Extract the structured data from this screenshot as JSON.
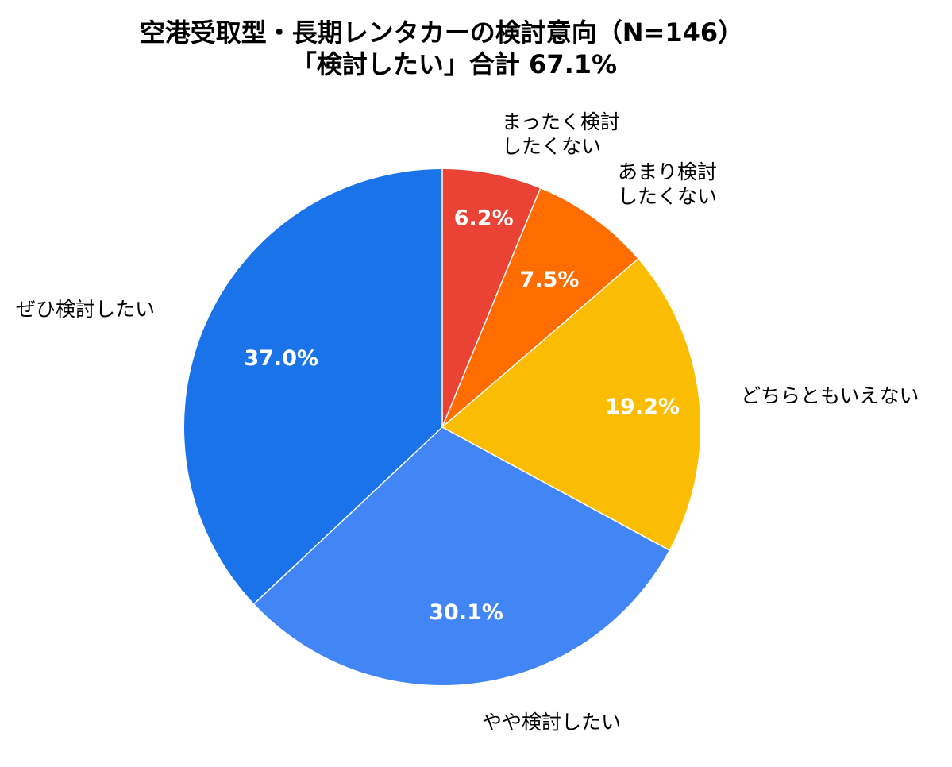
{
  "chart_data": {
    "type": "pie",
    "title": "空港受取型・長期レンタカーの検討意向（N=146）",
    "subtitle": "「検討したい」合計 67.1%",
    "categories": [
      "まったく検討\nしたくない",
      "あまり検討\nしたくない",
      "どちらともいえない",
      "やや検討したい",
      "ぜひ検討したい"
    ],
    "values": [
      6.2,
      7.5,
      19.2,
      30.1,
      37.0
    ],
    "value_labels": [
      "6.2%",
      "7.5%",
      "19.2%",
      "30.1%",
      "37.0%"
    ],
    "colors": [
      "#EA4335",
      "#FF6D01",
      "#FBBC04",
      "#4285F4",
      "#1A73E8"
    ],
    "start": "12 o'clock",
    "direction": "clockwise"
  }
}
